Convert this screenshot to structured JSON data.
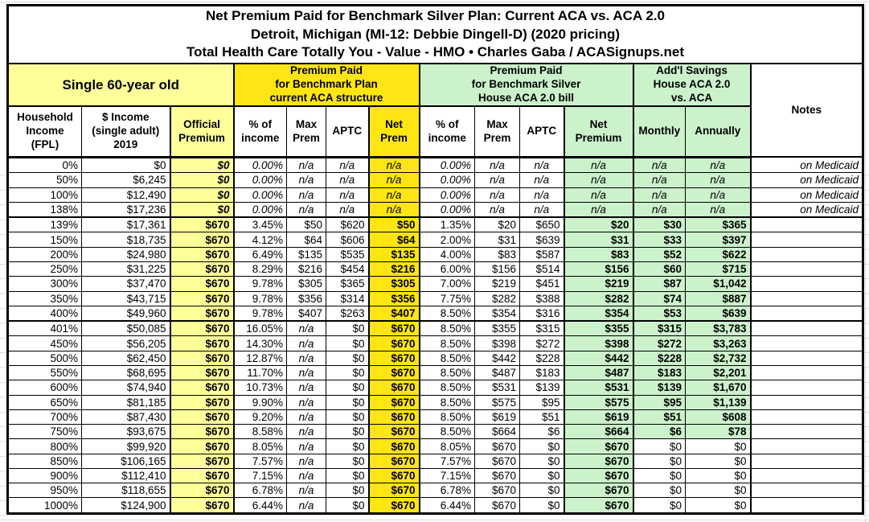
{
  "title": "Net Premium Paid for Benchmark Silver Plan: Current ACA vs. ACA 2.0\nDetroit, Michigan (MI-12: Debbie Dingell-D) (2020 pricing)\nTotal Health Care Totally You - Value - HMO • Charles Gaba / ACASignups.net",
  "groups": {
    "person": "Single 60-year old",
    "aca": "Premium Paid\nfor Benchmark Plan\ncurrent ACA structure",
    "aca2": "Premium Paid\nfor Benchmark Silver\nHouse ACA 2.0 bill",
    "savings": "Add'l Savings\nHouse ACA 2.0\nvs. ACA",
    "notes": "Notes"
  },
  "columns": {
    "fpl": "Household\nIncome\n(FPL)",
    "income": "$ Income\n(single adult)\n2019",
    "official": "Official\nPremium",
    "pct": "% of\nincome",
    "max": "Max\nPrem",
    "aptc": "APTC",
    "net_prem": "Net\nPrem",
    "net_premium": "Net\nPremium",
    "monthly": "Monthly",
    "annually": "Annually"
  },
  "colors": {
    "light_yellow": "#ffff99",
    "bright_yellow": "#ffe513",
    "light_green": "#ccf2cc"
  },
  "rows": [
    {
      "fpl": "0%",
      "income": "$0",
      "official": "$0",
      "c_pct": "0.00%",
      "c_max": "n/a",
      "c_aptc": "n/a",
      "c_net": "n/a",
      "h_pct": "0.00%",
      "h_max": "n/a",
      "h_aptc": "n/a",
      "h_net": "n/a",
      "sav_mo": "n/a",
      "sav_yr": "n/a",
      "note": "on Medicaid",
      "medicaid": true,
      "sav_green": true
    },
    {
      "fpl": "50%",
      "income": "$6,245",
      "official": "$0",
      "c_pct": "0.00%",
      "c_max": "n/a",
      "c_aptc": "n/a",
      "c_net": "n/a",
      "h_pct": "0.00%",
      "h_max": "n/a",
      "h_aptc": "n/a",
      "h_net": "n/a",
      "sav_mo": "n/a",
      "sav_yr": "n/a",
      "note": "on Medicaid",
      "medicaid": true,
      "sav_green": true
    },
    {
      "fpl": "100%",
      "income": "$12,490",
      "official": "$0",
      "c_pct": "0.00%",
      "c_max": "n/a",
      "c_aptc": "n/a",
      "c_net": "n/a",
      "h_pct": "0.00%",
      "h_max": "n/a",
      "h_aptc": "n/a",
      "h_net": "n/a",
      "sav_mo": "n/a",
      "sav_yr": "n/a",
      "note": "on Medicaid",
      "medicaid": true,
      "sav_green": true
    },
    {
      "fpl": "138%",
      "income": "$17,236",
      "official": "$0",
      "c_pct": "0.00%",
      "c_max": "n/a",
      "c_aptc": "n/a",
      "c_net": "n/a",
      "h_pct": "0.00%",
      "h_max": "n/a",
      "h_aptc": "n/a",
      "h_net": "n/a",
      "sav_mo": "n/a",
      "sav_yr": "n/a",
      "note": "on Medicaid",
      "medicaid": true,
      "sav_green": true
    },
    {
      "fpl": "139%",
      "income": "$17,361",
      "official": "$670",
      "c_pct": "3.45%",
      "c_max": "$50",
      "c_aptc": "$620",
      "c_net": "$50",
      "h_pct": "1.35%",
      "h_max": "$20",
      "h_aptc": "$650",
      "h_net": "$20",
      "sav_mo": "$30",
      "sav_yr": "$365",
      "note": "",
      "medicaid": false,
      "sav_green": true,
      "thick_top": true
    },
    {
      "fpl": "150%",
      "income": "$18,735",
      "official": "$670",
      "c_pct": "4.12%",
      "c_max": "$64",
      "c_aptc": "$606",
      "c_net": "$64",
      "h_pct": "2.00%",
      "h_max": "$31",
      "h_aptc": "$639",
      "h_net": "$31",
      "sav_mo": "$33",
      "sav_yr": "$397",
      "note": "",
      "medicaid": false,
      "sav_green": true
    },
    {
      "fpl": "200%",
      "income": "$24,980",
      "official": "$670",
      "c_pct": "6.49%",
      "c_max": "$135",
      "c_aptc": "$535",
      "c_net": "$135",
      "h_pct": "4.00%",
      "h_max": "$83",
      "h_aptc": "$587",
      "h_net": "$83",
      "sav_mo": "$52",
      "sav_yr": "$622",
      "note": "",
      "medicaid": false,
      "sav_green": true
    },
    {
      "fpl": "250%",
      "income": "$31,225",
      "official": "$670",
      "c_pct": "8.29%",
      "c_max": "$216",
      "c_aptc": "$454",
      "c_net": "$216",
      "h_pct": "6.00%",
      "h_max": "$156",
      "h_aptc": "$514",
      "h_net": "$156",
      "sav_mo": "$60",
      "sav_yr": "$715",
      "note": "",
      "medicaid": false,
      "sav_green": true
    },
    {
      "fpl": "300%",
      "income": "$37,470",
      "official": "$670",
      "c_pct": "9.78%",
      "c_max": "$305",
      "c_aptc": "$365",
      "c_net": "$305",
      "h_pct": "7.00%",
      "h_max": "$219",
      "h_aptc": "$451",
      "h_net": "$219",
      "sav_mo": "$87",
      "sav_yr": "$1,042",
      "note": "",
      "medicaid": false,
      "sav_green": true
    },
    {
      "fpl": "350%",
      "income": "$43,715",
      "official": "$670",
      "c_pct": "9.78%",
      "c_max": "$356",
      "c_aptc": "$314",
      "c_net": "$356",
      "h_pct": "7.75%",
      "h_max": "$282",
      "h_aptc": "$388",
      "h_net": "$282",
      "sav_mo": "$74",
      "sav_yr": "$887",
      "note": "",
      "medicaid": false,
      "sav_green": true
    },
    {
      "fpl": "400%",
      "income": "$49,960",
      "official": "$670",
      "c_pct": "9.78%",
      "c_max": "$407",
      "c_aptc": "$263",
      "c_net": "$407",
      "h_pct": "8.50%",
      "h_max": "$354",
      "h_aptc": "$316",
      "h_net": "$354",
      "sav_mo": "$53",
      "sav_yr": "$639",
      "note": "",
      "medicaid": false,
      "sav_green": true
    },
    {
      "fpl": "401%",
      "income": "$50,085",
      "official": "$670",
      "c_pct": "16.05%",
      "c_max": "n/a",
      "c_aptc": "$0",
      "c_net": "$670",
      "h_pct": "8.50%",
      "h_max": "$355",
      "h_aptc": "$315",
      "h_net": "$355",
      "sav_mo": "$315",
      "sav_yr": "$3,783",
      "note": "",
      "medicaid": false,
      "sav_green": true,
      "thick_top": true
    },
    {
      "fpl": "450%",
      "income": "$56,205",
      "official": "$670",
      "c_pct": "14.30%",
      "c_max": "n/a",
      "c_aptc": "$0",
      "c_net": "$670",
      "h_pct": "8.50%",
      "h_max": "$398",
      "h_aptc": "$272",
      "h_net": "$398",
      "sav_mo": "$272",
      "sav_yr": "$3,263",
      "note": "",
      "medicaid": false,
      "sav_green": true
    },
    {
      "fpl": "500%",
      "income": "$62,450",
      "official": "$670",
      "c_pct": "12.87%",
      "c_max": "n/a",
      "c_aptc": "$0",
      "c_net": "$670",
      "h_pct": "8.50%",
      "h_max": "$442",
      "h_aptc": "$228",
      "h_net": "$442",
      "sav_mo": "$228",
      "sav_yr": "$2,732",
      "note": "",
      "medicaid": false,
      "sav_green": true
    },
    {
      "fpl": "550%",
      "income": "$68,695",
      "official": "$670",
      "c_pct": "11.70%",
      "c_max": "n/a",
      "c_aptc": "$0",
      "c_net": "$670",
      "h_pct": "8.50%",
      "h_max": "$487",
      "h_aptc": "$183",
      "h_net": "$487",
      "sav_mo": "$183",
      "sav_yr": "$2,201",
      "note": "",
      "medicaid": false,
      "sav_green": true
    },
    {
      "fpl": "600%",
      "income": "$74,940",
      "official": "$670",
      "c_pct": "10.73%",
      "c_max": "n/a",
      "c_aptc": "$0",
      "c_net": "$670",
      "h_pct": "8.50%",
      "h_max": "$531",
      "h_aptc": "$139",
      "h_net": "$531",
      "sav_mo": "$139",
      "sav_yr": "$1,670",
      "note": "",
      "medicaid": false,
      "sav_green": true
    },
    {
      "fpl": "650%",
      "income": "$81,185",
      "official": "$670",
      "c_pct": "9.90%",
      "c_max": "n/a",
      "c_aptc": "$0",
      "c_net": "$670",
      "h_pct": "8.50%",
      "h_max": "$575",
      "h_aptc": "$95",
      "h_net": "$575",
      "sav_mo": "$95",
      "sav_yr": "$1,139",
      "note": "",
      "medicaid": false,
      "sav_green": true
    },
    {
      "fpl": "700%",
      "income": "$87,430",
      "official": "$670",
      "c_pct": "9.20%",
      "c_max": "n/a",
      "c_aptc": "$0",
      "c_net": "$670",
      "h_pct": "8.50%",
      "h_max": "$619",
      "h_aptc": "$51",
      "h_net": "$619",
      "sav_mo": "$51",
      "sav_yr": "$608",
      "note": "",
      "medicaid": false,
      "sav_green": true
    },
    {
      "fpl": "750%",
      "income": "$93,675",
      "official": "$670",
      "c_pct": "8.58%",
      "c_max": "n/a",
      "c_aptc": "$0",
      "c_net": "$670",
      "h_pct": "8.50%",
      "h_max": "$664",
      "h_aptc": "$6",
      "h_net": "$664",
      "sav_mo": "$6",
      "sav_yr": "$78",
      "note": "",
      "medicaid": false,
      "sav_green": true
    },
    {
      "fpl": "800%",
      "income": "$99,920",
      "official": "$670",
      "c_pct": "8.05%",
      "c_max": "n/a",
      "c_aptc": "$0",
      "c_net": "$670",
      "h_pct": "8.05%",
      "h_max": "$670",
      "h_aptc": "$0",
      "h_net": "$670",
      "sav_mo": "$0",
      "sav_yr": "$0",
      "note": "",
      "medicaid": false,
      "sav_green": false
    },
    {
      "fpl": "850%",
      "income": "$106,165",
      "official": "$670",
      "c_pct": "7.57%",
      "c_max": "n/a",
      "c_aptc": "$0",
      "c_net": "$670",
      "h_pct": "7.57%",
      "h_max": "$670",
      "h_aptc": "$0",
      "h_net": "$670",
      "sav_mo": "$0",
      "sav_yr": "$0",
      "note": "",
      "medicaid": false,
      "sav_green": false
    },
    {
      "fpl": "900%",
      "income": "$112,410",
      "official": "$670",
      "c_pct": "7.15%",
      "c_max": "n/a",
      "c_aptc": "$0",
      "c_net": "$670",
      "h_pct": "7.15%",
      "h_max": "$670",
      "h_aptc": "$0",
      "h_net": "$670",
      "sav_mo": "$0",
      "sav_yr": "$0",
      "note": "",
      "medicaid": false,
      "sav_green": false
    },
    {
      "fpl": "950%",
      "income": "$118,655",
      "official": "$670",
      "c_pct": "6.78%",
      "c_max": "n/a",
      "c_aptc": "$0",
      "c_net": "$670",
      "h_pct": "6.78%",
      "h_max": "$670",
      "h_aptc": "$0",
      "h_net": "$670",
      "sav_mo": "$0",
      "sav_yr": "$0",
      "note": "",
      "medicaid": false,
      "sav_green": false
    },
    {
      "fpl": "1000%",
      "income": "$124,900",
      "official": "$670",
      "c_pct": "6.44%",
      "c_max": "n/a",
      "c_aptc": "$0",
      "c_net": "$670",
      "h_pct": "6.44%",
      "h_max": "$670",
      "h_aptc": "$0",
      "h_net": "$670",
      "sav_mo": "$0",
      "sav_yr": "$0",
      "note": "",
      "medicaid": false,
      "sav_green": false
    }
  ]
}
